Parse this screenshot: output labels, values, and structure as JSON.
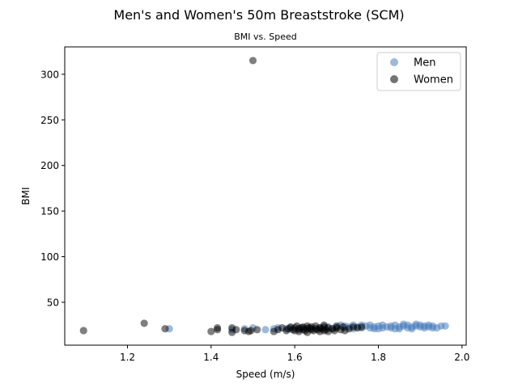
{
  "chart_data": {
    "type": "scatter",
    "title": "Men's and Women's 50m Breaststroke (SCM)",
    "subtitle": "BMI vs. Speed",
    "xlabel": "Speed (m/s)",
    "ylabel": "BMI",
    "xlim": [
      1.05,
      2.01
    ],
    "ylim": [
      3,
      330
    ],
    "xticks": [
      1.2,
      1.4,
      1.6,
      1.8,
      2.0
    ],
    "xtick_labels": [
      "1.2",
      "1.4",
      "1.6",
      "1.8",
      "2.0"
    ],
    "yticks": [
      50,
      100,
      150,
      200,
      250,
      300
    ],
    "ytick_labels": [
      "50",
      "100",
      "150",
      "200",
      "250",
      "300"
    ],
    "grid": false,
    "legend_position": "top-right",
    "series": [
      {
        "name": "Men",
        "color": "#4f81bd",
        "points": [
          [
            1.3,
            21
          ],
          [
            1.45,
            20
          ],
          [
            1.48,
            21
          ],
          [
            1.5,
            22
          ],
          [
            1.53,
            20
          ],
          [
            1.55,
            21
          ],
          [
            1.56,
            22
          ],
          [
            1.58,
            21
          ],
          [
            1.59,
            22
          ],
          [
            1.61,
            20
          ],
          [
            1.62,
            22
          ],
          [
            1.64,
            21
          ],
          [
            1.66,
            22
          ],
          [
            1.68,
            23
          ],
          [
            1.7,
            22
          ],
          [
            1.71,
            25
          ],
          [
            1.72,
            22
          ],
          [
            1.73,
            23
          ],
          [
            1.74,
            21
          ],
          [
            1.75,
            23
          ],
          [
            1.76,
            22
          ],
          [
            1.77,
            24
          ],
          [
            1.78,
            22
          ],
          [
            1.78,
            25
          ],
          [
            1.79,
            23
          ],
          [
            1.8,
            24
          ],
          [
            1.81,
            22
          ],
          [
            1.81,
            25
          ],
          [
            1.82,
            23
          ],
          [
            1.83,
            24
          ],
          [
            1.83,
            22
          ],
          [
            1.84,
            25
          ],
          [
            1.85,
            23
          ],
          [
            1.85,
            21
          ],
          [
            1.86,
            24
          ],
          [
            1.86,
            26
          ],
          [
            1.87,
            22
          ],
          [
            1.87,
            25
          ],
          [
            1.88,
            23
          ],
          [
            1.88,
            21
          ],
          [
            1.89,
            24
          ],
          [
            1.89,
            26
          ],
          [
            1.9,
            23
          ],
          [
            1.9,
            25
          ],
          [
            1.91,
            22
          ],
          [
            1.91,
            24
          ],
          [
            1.92,
            23
          ],
          [
            1.92,
            25
          ],
          [
            1.93,
            24
          ],
          [
            1.94,
            22
          ],
          [
            1.95,
            24
          ],
          [
            1.96,
            24
          ],
          [
            1.79,
            21
          ],
          [
            1.84,
            21
          ],
          [
            1.76,
            25
          ],
          [
            1.72,
            24
          ],
          [
            1.69,
            21
          ],
          [
            1.74,
            25
          ],
          [
            1.8,
            21
          ],
          [
            1.93,
            22
          ]
        ]
      },
      {
        "name": "Women",
        "color": "#000000",
        "points": [
          [
            1.5,
            315
          ],
          [
            1.095,
            19
          ],
          [
            1.24,
            27
          ],
          [
            1.29,
            21
          ],
          [
            1.4,
            18
          ],
          [
            1.415,
            20
          ],
          [
            1.415,
            22
          ],
          [
            1.45,
            22
          ],
          [
            1.45,
            17
          ],
          [
            1.46,
            20
          ],
          [
            1.48,
            19
          ],
          [
            1.49,
            18
          ],
          [
            1.495,
            19
          ],
          [
            1.51,
            20
          ],
          [
            1.55,
            18
          ],
          [
            1.56,
            20
          ],
          [
            1.57,
            22
          ],
          [
            1.58,
            19
          ],
          [
            1.585,
            21
          ],
          [
            1.59,
            23
          ],
          [
            1.595,
            20
          ],
          [
            1.6,
            22
          ],
          [
            1.6,
            19
          ],
          [
            1.605,
            24
          ],
          [
            1.61,
            21
          ],
          [
            1.61,
            18
          ],
          [
            1.615,
            22
          ],
          [
            1.62,
            20
          ],
          [
            1.62,
            23
          ],
          [
            1.625,
            19
          ],
          [
            1.63,
            21
          ],
          [
            1.63,
            17
          ],
          [
            1.635,
            22
          ],
          [
            1.64,
            20
          ],
          [
            1.64,
            23
          ],
          [
            1.645,
            19
          ],
          [
            1.65,
            21
          ],
          [
            1.65,
            24
          ],
          [
            1.655,
            20
          ],
          [
            1.66,
            22
          ],
          [
            1.66,
            18
          ],
          [
            1.665,
            21
          ],
          [
            1.67,
            23
          ],
          [
            1.67,
            19
          ],
          [
            1.675,
            20
          ],
          [
            1.68,
            22
          ],
          [
            1.68,
            18
          ],
          [
            1.69,
            21
          ],
          [
            1.695,
            19
          ],
          [
            1.7,
            22
          ],
          [
            1.71,
            20
          ],
          [
            1.715,
            23
          ],
          [
            1.72,
            19
          ],
          [
            1.73,
            21
          ],
          [
            1.74,
            23
          ],
          [
            1.75,
            22
          ],
          [
            1.76,
            23
          ],
          [
            1.67,
            25
          ],
          [
            1.63,
            24
          ],
          [
            1.7,
            24
          ]
        ]
      }
    ]
  }
}
